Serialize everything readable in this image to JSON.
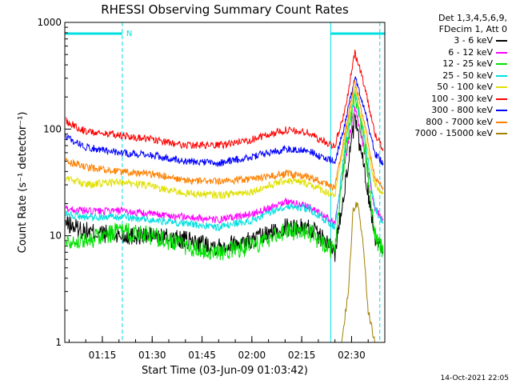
{
  "chart_data": {
    "type": "line",
    "title": "RHESSI Observing Summary Count Rates",
    "ylabel": "Count Rate (s⁻¹ detector⁻¹)",
    "xlabel": "Start Time (03-Jun-09 01:03:42)",
    "x_start": "01:03:42",
    "x_end": "02:40",
    "y_scale": "log",
    "ylim": [
      1,
      1000
    ],
    "y_ticks": [
      "1",
      "10",
      "100",
      "1000"
    ],
    "x_ticks": [
      "01:15",
      "01:30",
      "01:45",
      "02:00",
      "02:15",
      "02:30"
    ],
    "x_tick_minutes": [
      75,
      90,
      105,
      120,
      135,
      150
    ],
    "x_range_minutes": [
      63.7,
      160
    ],
    "legend_header": [
      "Det 1,3,4,5,6,9,",
      "FDecim 1, Att 0"
    ],
    "footer": "14-Oct-2021 22:05",
    "flags": [
      {
        "label": "N",
        "start_min": 63.7,
        "end_min": 81,
        "color": "#00e0e0"
      },
      {
        "label": "",
        "start_min": 143.7,
        "end_min": 160,
        "color": "#00e0e0"
      }
    ],
    "vertical_markers_min": [
      81,
      143.7,
      158.5
    ],
    "series": [
      {
        "name": "3 - 6 keV",
        "color": "#000000",
        "x": [
          64,
          70,
          80,
          90,
          100,
          110,
          120,
          130,
          137,
          142,
          145,
          148,
          151,
          154,
          157,
          159.5
        ],
        "y": [
          13,
          11,
          10,
          10,
          9,
          8,
          9,
          12,
          12,
          9,
          7,
          30,
          120,
          40,
          10,
          7
        ]
      },
      {
        "name": "6 - 12 keV",
        "color": "#ff00ff",
        "x": [
          64,
          70,
          80,
          90,
          100,
          110,
          120,
          130,
          137,
          142,
          145,
          148,
          151,
          154,
          157,
          159.5
        ],
        "y": [
          18,
          17,
          17,
          16,
          15,
          14,
          16,
          21,
          19,
          15,
          13,
          50,
          160,
          60,
          18,
          14
        ]
      },
      {
        "name": "12 - 25 keV",
        "color": "#00e000",
        "x": [
          64,
          70,
          80,
          90,
          100,
          110,
          120,
          130,
          137,
          142,
          145,
          148,
          151,
          154,
          157,
          159.5
        ],
        "y": [
          9,
          9,
          11,
          10,
          8,
          7,
          8,
          11,
          11,
          8,
          7,
          60,
          200,
          70,
          10,
          7
        ]
      },
      {
        "name": "25 - 50 keV",
        "color": "#00e0e0",
        "x": [
          64,
          70,
          80,
          90,
          100,
          110,
          120,
          130,
          137,
          142,
          145,
          148,
          151,
          154,
          157,
          159.5
        ],
        "y": [
          16,
          15,
          15,
          14,
          13,
          12,
          14,
          19,
          18,
          14,
          12,
          70,
          230,
          80,
          18,
          13
        ]
      },
      {
        "name": "50 - 100 keV",
        "color": "#e0e000",
        "x": [
          64,
          70,
          80,
          90,
          100,
          110,
          120,
          130,
          137,
          142,
          145,
          148,
          151,
          154,
          157,
          159.5
        ],
        "y": [
          35,
          30,
          32,
          29,
          25,
          24,
          26,
          33,
          31,
          26,
          24,
          80,
          240,
          90,
          30,
          25
        ]
      },
      {
        "name": "100 - 300 keV",
        "color": "#ff0000",
        "x": [
          64,
          70,
          80,
          90,
          100,
          110,
          120,
          130,
          137,
          142,
          145,
          148,
          151,
          154,
          157,
          159.5
        ],
        "y": [
          120,
          95,
          88,
          80,
          70,
          70,
          80,
          98,
          92,
          75,
          70,
          150,
          520,
          250,
          90,
          65
        ]
      },
      {
        "name": "300 - 800 keV",
        "color": "#0000ff",
        "x": [
          64,
          70,
          80,
          90,
          100,
          110,
          120,
          130,
          137,
          142,
          145,
          148,
          151,
          154,
          157,
          159.5
        ],
        "y": [
          85,
          68,
          60,
          57,
          50,
          48,
          55,
          65,
          63,
          53,
          50,
          110,
          320,
          150,
          60,
          48
        ]
      },
      {
        "name": "800 - 7000 keV",
        "color": "#ff8000",
        "x": [
          64,
          70,
          80,
          90,
          100,
          110,
          120,
          130,
          137,
          142,
          145,
          148,
          151,
          154,
          157,
          159.5
        ],
        "y": [
          50,
          44,
          40,
          38,
          33,
          32,
          34,
          38,
          36,
          31,
          28,
          90,
          280,
          110,
          35,
          28
        ]
      },
      {
        "name": "7000 - 15000 keV",
        "color": "#a08000",
        "x": [
          147,
          149,
          150.5,
          152,
          153.5,
          155,
          157
        ],
        "y": [
          1,
          3,
          18,
          20,
          8,
          2,
          1
        ]
      }
    ]
  }
}
